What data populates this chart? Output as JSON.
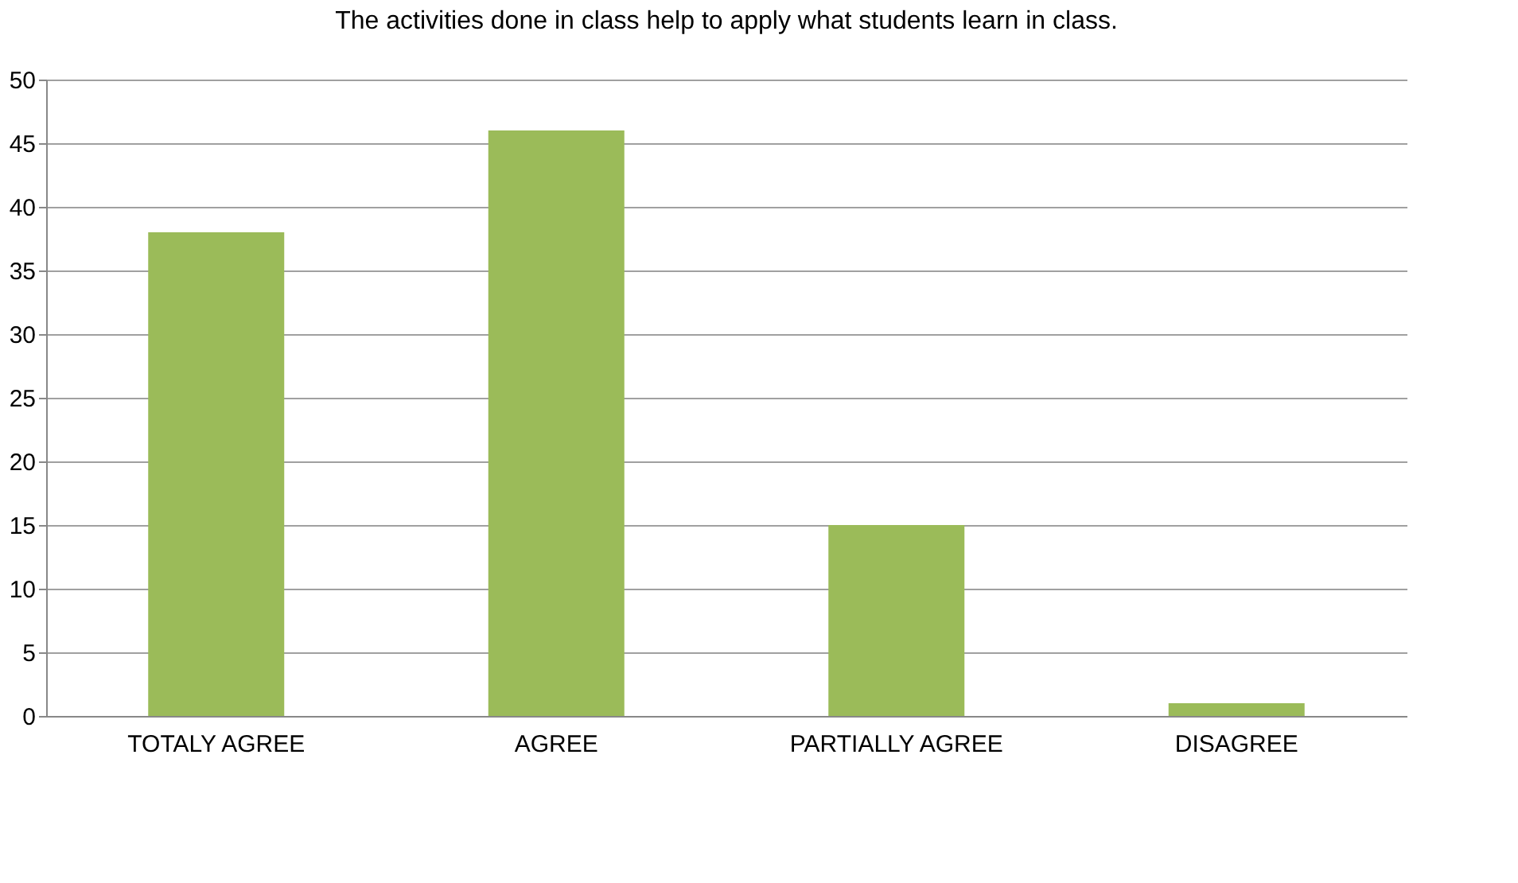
{
  "chart_data": {
    "type": "bar",
    "title": "The activities done in class help to apply what students learn in class.",
    "categories": [
      "TOTALY AGREE",
      "AGREE",
      "PARTIALLY AGREE",
      "DISAGREE"
    ],
    "values": [
      38,
      46,
      15,
      1
    ],
    "color": "#9bbb59",
    "ylim": [
      0,
      50
    ],
    "yticks": [
      0,
      5,
      10,
      15,
      20,
      25,
      30,
      35,
      40,
      45,
      50
    ],
    "grid": "y"
  }
}
